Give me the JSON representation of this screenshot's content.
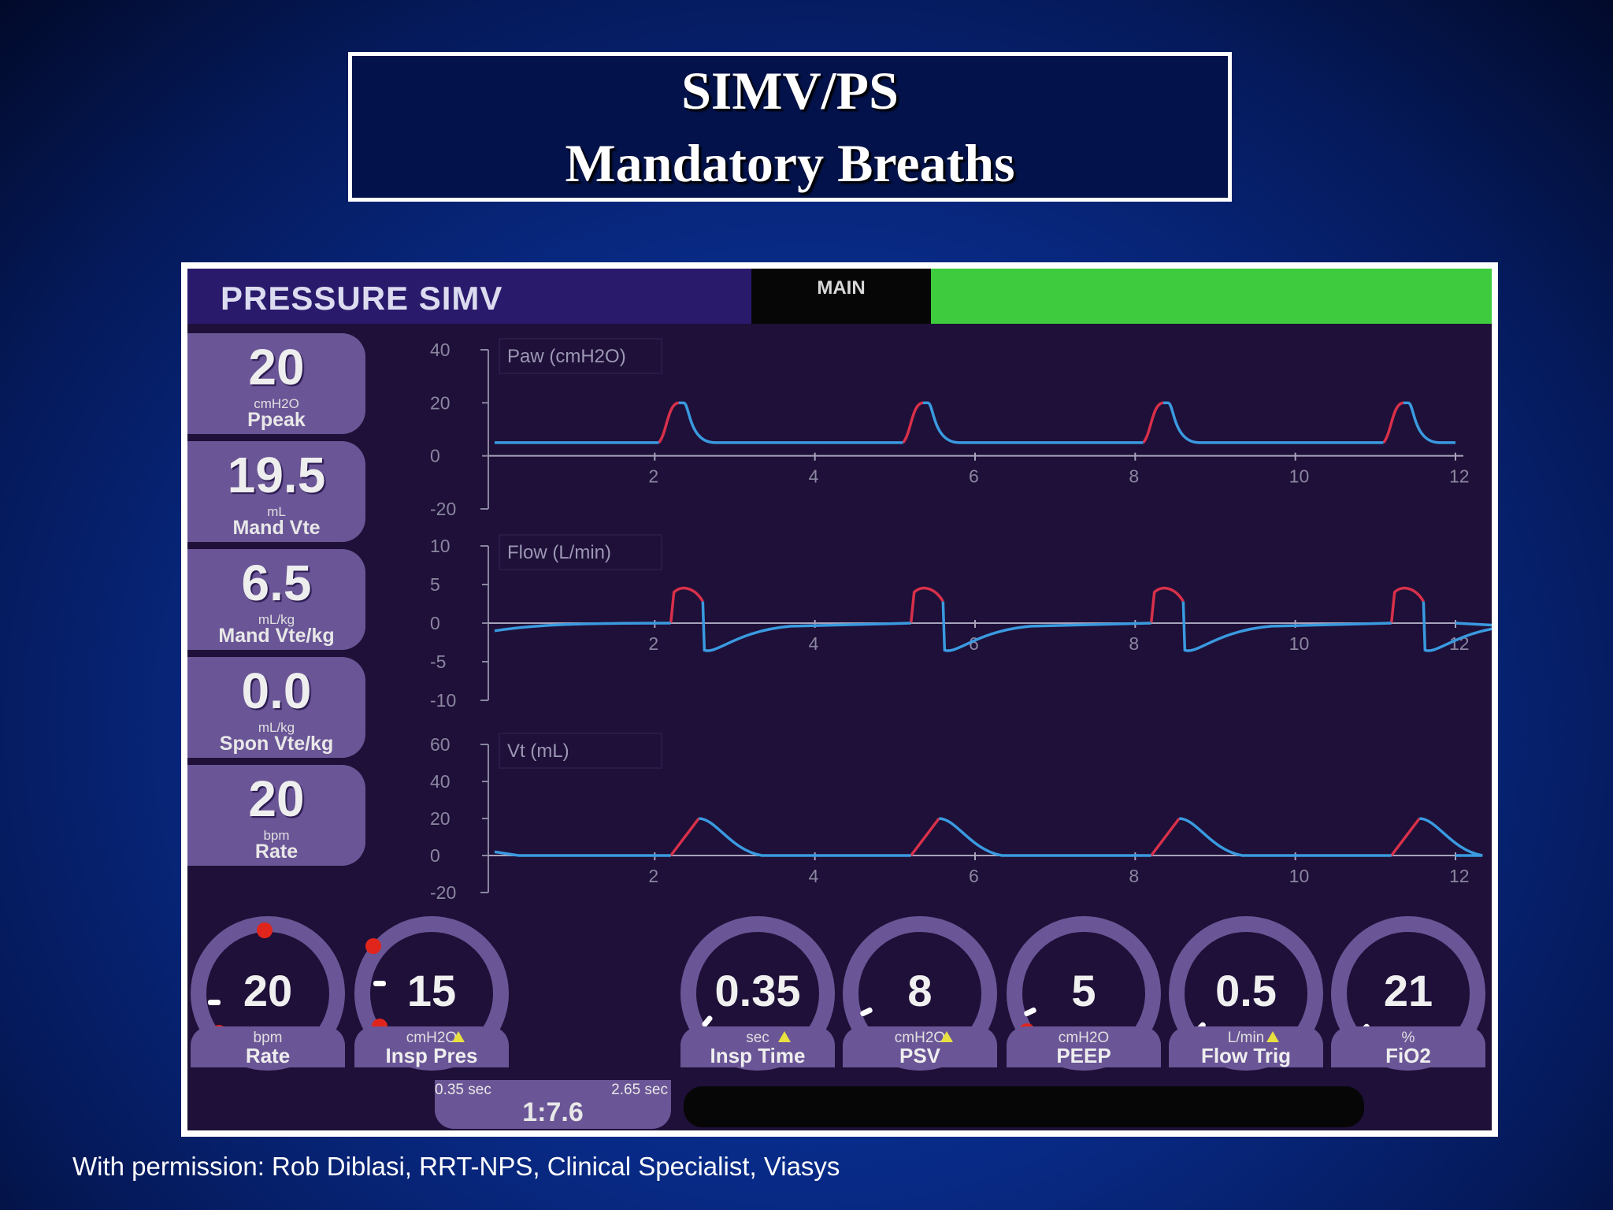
{
  "slide": {
    "title_line1": "SIMV/PS",
    "title_line2": "Mandatory Breaths",
    "credit": "With permission: Rob Diblasi, RRT-NPS, Clinical Specialist, Viasys"
  },
  "header": {
    "mode": "PRESSURE SIMV",
    "main": "MAIN",
    "status_color": "#3ecb3e"
  },
  "monitors": [
    {
      "value": "20",
      "unit": "cmH2O",
      "label": "Ppeak"
    },
    {
      "value": "19.5",
      "unit": "mL",
      "label": "Mand Vte"
    },
    {
      "value": "6.5",
      "unit": "mL/kg",
      "label": "Mand Vte/kg"
    },
    {
      "value": "0.0",
      "unit": "mL/kg",
      "label": "Spon Vte/kg"
    },
    {
      "value": "20",
      "unit": "bpm",
      "label": "Rate"
    }
  ],
  "controls": [
    {
      "value": "20",
      "unit": "bpm",
      "label": "Rate",
      "alert": false
    },
    {
      "value": "15",
      "unit": "cmH2O",
      "label": "Insp Pres",
      "alert": true
    },
    {
      "value": "0.35",
      "unit": "sec",
      "label": "Insp Time",
      "alert": true
    },
    {
      "value": "8",
      "unit": "cmH2O",
      "label": "PSV",
      "alert": true
    },
    {
      "value": "5",
      "unit": "cmH2O",
      "label": "PEEP",
      "alert": false
    },
    {
      "value": "0.5",
      "unit": "L/min",
      "label": "Flow Trig",
      "alert": true
    },
    {
      "value": "21",
      "unit": "%",
      "label": "FiO2",
      "alert": false
    }
  ],
  "ie_ratio": {
    "insp": "0.35 sec",
    "exp": "2.65 sec",
    "ratio": "1:7.6"
  },
  "chart_data": [
    {
      "type": "line",
      "title": "Paw (cmH2O)",
      "x_ticks": [
        "2",
        "4",
        "6",
        "8",
        "10",
        "12"
      ],
      "y_ticks": [
        "40",
        "20",
        "0",
        "-20"
      ],
      "xlim": [
        0,
        12
      ],
      "ylim": [
        -20,
        40
      ],
      "baseline": 5,
      "breaths": [
        {
          "start": 2.05,
          "peak": 20,
          "end": 2.75
        },
        {
          "start": 5.1,
          "peak": 20,
          "end": 5.8
        },
        {
          "start": 8.1,
          "peak": 20,
          "end": 8.8
        },
        {
          "start": 11.1,
          "peak": 20,
          "end": 11.8
        }
      ]
    },
    {
      "type": "line",
      "title": "Flow (L/min)",
      "x_ticks": [
        "2",
        "4",
        "6",
        "8",
        "10",
        "12"
      ],
      "y_ticks": [
        "10",
        "5",
        "0",
        "-5",
        "-10"
      ],
      "xlim": [
        0,
        12
      ],
      "ylim": [
        -10,
        10
      ],
      "breaths": [
        {
          "start": 2.2,
          "peak": 4,
          "trough": -3.5
        },
        {
          "start": 5.2,
          "peak": 4,
          "trough": -3.5
        },
        {
          "start": 8.2,
          "peak": 4,
          "trough": -3.5
        },
        {
          "start": 11.2,
          "peak": 4,
          "trough": -3.5
        }
      ]
    },
    {
      "type": "line",
      "title": "Vt (mL)",
      "x_ticks": [
        "2",
        "4",
        "6",
        "8",
        "10",
        "12"
      ],
      "y_ticks": [
        "60",
        "40",
        "20",
        "0",
        "-20"
      ],
      "xlim": [
        0,
        12
      ],
      "ylim": [
        -20,
        60
      ],
      "breaths": [
        {
          "start": 2.2,
          "peak": 20
        },
        {
          "start": 5.2,
          "peak": 20
        },
        {
          "start": 8.2,
          "peak": 20
        },
        {
          "start": 11.2,
          "peak": 20
        }
      ]
    }
  ]
}
